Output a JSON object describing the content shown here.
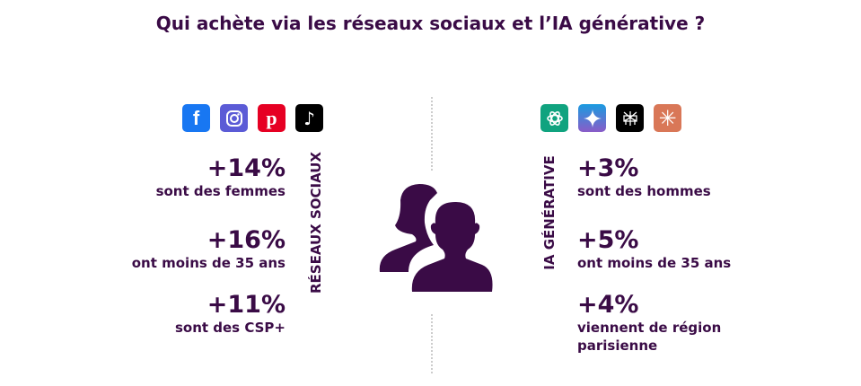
{
  "title": "Qui achète via les réseaux sociaux et l’IA générative ?",
  "colors": {
    "text": "#3a0b46",
    "facebook": "#1877f2",
    "instagram": "#5b5bd6",
    "pinterest": "#e60023",
    "tiktok": "#000000",
    "chatgpt": "#10a37f",
    "gemini": "#4a7de0",
    "perplexity": "#000000",
    "claude": "#d97757"
  },
  "left": {
    "label": "RÉSEAUX SOCIAUX",
    "icons": [
      "facebook-icon",
      "instagram-icon",
      "pinterest-icon",
      "tiktok-icon"
    ],
    "stats": [
      {
        "value": "+14%",
        "text": "sont des femmes"
      },
      {
        "value": "+16%",
        "text": "ont moins de 35 ans"
      },
      {
        "value": "+11%",
        "text": "sont des CSP+"
      }
    ]
  },
  "right": {
    "label": "IA GÉNÉRATIVE",
    "icons": [
      "chatgpt-icon",
      "gemini-icon",
      "perplexity-icon",
      "claude-icon"
    ],
    "stats": [
      {
        "value": "+3%",
        "text": "sont des hommes"
      },
      {
        "value": "+5%",
        "text": "ont moins de 35 ans"
      },
      {
        "value": "+4%",
        "text": "viennent de région parisienne"
      }
    ]
  }
}
